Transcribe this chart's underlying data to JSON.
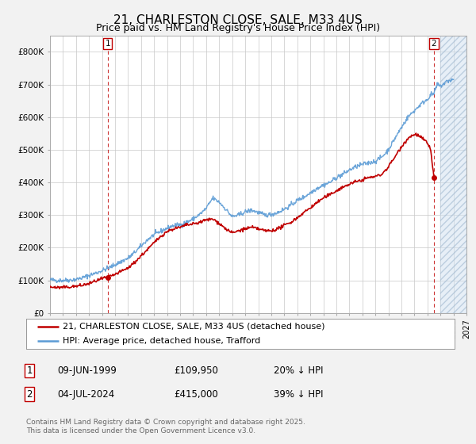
{
  "title": "21, CHARLESTON CLOSE, SALE, M33 4US",
  "subtitle": "Price paid vs. HM Land Registry's House Price Index (HPI)",
  "ylim": [
    0,
    850000
  ],
  "yticks": [
    0,
    100000,
    200000,
    300000,
    400000,
    500000,
    600000,
    700000,
    800000
  ],
  "ytick_labels": [
    "£0",
    "£100K",
    "£200K",
    "£300K",
    "£400K",
    "£500K",
    "£600K",
    "£700K",
    "£800K"
  ],
  "xlim_start": 1995.0,
  "xlim_end": 2027.0,
  "hpi_color": "#5b9bd5",
  "price_color": "#c00000",
  "background_color": "#f2f2f2",
  "plot_bg_color": "#ffffff",
  "grid_color": "#c8c8c8",
  "sale1_year": 1999.44,
  "sale1_price": 109950,
  "sale1_label": "1",
  "sale2_year": 2024.5,
  "sale2_price": 415000,
  "sale2_label": "2",
  "legend_label_price": "21, CHARLESTON CLOSE, SALE, M33 4US (detached house)",
  "legend_label_hpi": "HPI: Average price, detached house, Trafford",
  "fn1_box": "1",
  "fn1_date": "09-JUN-1999",
  "fn1_price": "£109,950",
  "fn1_hpi": "20% ↓ HPI",
  "fn2_box": "2",
  "fn2_date": "04-JUL-2024",
  "fn2_price": "£415,000",
  "fn2_hpi": "39% ↓ HPI",
  "copyright": "Contains HM Land Registry data © Crown copyright and database right 2025.\nThis data is licensed under the Open Government Licence v3.0.",
  "title_fontsize": 11,
  "subtitle_fontsize": 9,
  "tick_fontsize": 7.5,
  "legend_fontsize": 8,
  "footnote_fontsize": 8.5,
  "copyright_fontsize": 6.5,
  "hpi_anchors": [
    [
      1995.0,
      102000
    ],
    [
      1995.5,
      100000
    ],
    [
      1996.0,
      100000
    ],
    [
      1996.5,
      101000
    ],
    [
      1997.0,
      103000
    ],
    [
      1997.5,
      108000
    ],
    [
      1998.0,
      115000
    ],
    [
      1998.5,
      122000
    ],
    [
      1999.0,
      130000
    ],
    [
      1999.5,
      138000
    ],
    [
      2000.0,
      148000
    ],
    [
      2000.5,
      158000
    ],
    [
      2001.0,
      168000
    ],
    [
      2001.5,
      185000
    ],
    [
      2002.0,
      205000
    ],
    [
      2002.5,
      225000
    ],
    [
      2003.0,
      240000
    ],
    [
      2003.5,
      250000
    ],
    [
      2004.0,
      260000
    ],
    [
      2004.5,
      268000
    ],
    [
      2005.0,
      270000
    ],
    [
      2005.5,
      278000
    ],
    [
      2006.0,
      288000
    ],
    [
      2006.5,
      302000
    ],
    [
      2007.0,
      320000
    ],
    [
      2007.5,
      352000
    ],
    [
      2008.0,
      340000
    ],
    [
      2008.5,
      318000
    ],
    [
      2009.0,
      295000
    ],
    [
      2009.5,
      300000
    ],
    [
      2010.0,
      310000
    ],
    [
      2010.5,
      315000
    ],
    [
      2011.0,
      308000
    ],
    [
      2011.5,
      300000
    ],
    [
      2012.0,
      302000
    ],
    [
      2012.5,
      308000
    ],
    [
      2013.0,
      318000
    ],
    [
      2013.5,
      330000
    ],
    [
      2014.0,
      345000
    ],
    [
      2014.5,
      355000
    ],
    [
      2015.0,
      368000
    ],
    [
      2015.5,
      382000
    ],
    [
      2016.0,
      392000
    ],
    [
      2016.5,
      400000
    ],
    [
      2017.0,
      415000
    ],
    [
      2017.5,
      425000
    ],
    [
      2018.0,
      438000
    ],
    [
      2018.5,
      448000
    ],
    [
      2019.0,
      455000
    ],
    [
      2019.5,
      460000
    ],
    [
      2020.0,
      465000
    ],
    [
      2020.5,
      478000
    ],
    [
      2021.0,
      500000
    ],
    [
      2021.5,
      535000
    ],
    [
      2022.0,
      568000
    ],
    [
      2022.5,
      600000
    ],
    [
      2023.0,
      620000
    ],
    [
      2023.5,
      640000
    ],
    [
      2024.0,
      655000
    ],
    [
      2024.25,
      668000
    ],
    [
      2024.5,
      672000
    ],
    [
      2024.75,
      700000
    ],
    [
      2025.0,
      695000
    ],
    [
      2025.5,
      710000
    ],
    [
      2026.0,
      715000
    ]
  ],
  "price_anchors": [
    [
      1995.0,
      80000
    ],
    [
      1995.5,
      78000
    ],
    [
      1996.0,
      78000
    ],
    [
      1996.5,
      80000
    ],
    [
      1997.0,
      82000
    ],
    [
      1997.5,
      85000
    ],
    [
      1998.0,
      90000
    ],
    [
      1998.5,
      98000
    ],
    [
      1999.0,
      105000
    ],
    [
      1999.44,
      109950
    ],
    [
      2000.0,
      118000
    ],
    [
      2000.5,
      128000
    ],
    [
      2001.0,
      138000
    ],
    [
      2001.5,
      155000
    ],
    [
      2002.0,
      175000
    ],
    [
      2002.5,
      195000
    ],
    [
      2003.0,
      215000
    ],
    [
      2003.5,
      235000
    ],
    [
      2004.0,
      250000
    ],
    [
      2004.5,
      258000
    ],
    [
      2005.0,
      262000
    ],
    [
      2005.5,
      270000
    ],
    [
      2006.0,
      272000
    ],
    [
      2006.5,
      278000
    ],
    [
      2007.0,
      285000
    ],
    [
      2007.5,
      288000
    ],
    [
      2008.0,
      275000
    ],
    [
      2008.5,
      258000
    ],
    [
      2009.0,
      245000
    ],
    [
      2009.5,
      252000
    ],
    [
      2010.0,
      258000
    ],
    [
      2010.5,
      262000
    ],
    [
      2011.0,
      258000
    ],
    [
      2011.5,
      252000
    ],
    [
      2012.0,
      252000
    ],
    [
      2012.5,
      258000
    ],
    [
      2013.0,
      268000
    ],
    [
      2013.5,
      278000
    ],
    [
      2014.0,
      292000
    ],
    [
      2014.5,
      308000
    ],
    [
      2015.0,
      322000
    ],
    [
      2015.5,
      338000
    ],
    [
      2016.0,
      352000
    ],
    [
      2016.5,
      362000
    ],
    [
      2017.0,
      375000
    ],
    [
      2017.5,
      385000
    ],
    [
      2018.0,
      395000
    ],
    [
      2018.5,
      402000
    ],
    [
      2019.0,
      408000
    ],
    [
      2019.5,
      415000
    ],
    [
      2020.0,
      418000
    ],
    [
      2020.5,
      425000
    ],
    [
      2021.0,
      448000
    ],
    [
      2021.5,
      478000
    ],
    [
      2022.0,
      510000
    ],
    [
      2022.5,
      535000
    ],
    [
      2023.0,
      548000
    ],
    [
      2023.25,
      545000
    ],
    [
      2023.5,
      538000
    ],
    [
      2023.75,
      530000
    ],
    [
      2024.0,
      520000
    ],
    [
      2024.25,
      500000
    ],
    [
      2024.5,
      415000
    ]
  ]
}
